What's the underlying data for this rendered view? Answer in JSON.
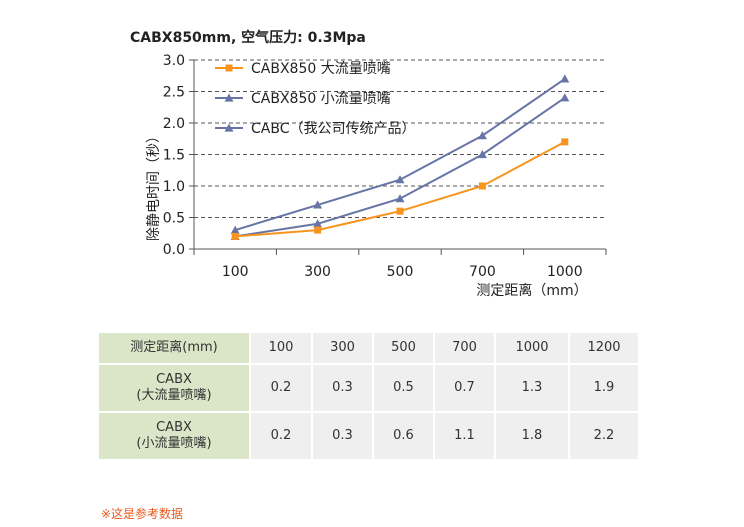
{
  "chart_data": {
    "type": "line",
    "title": "CABX850mm, 空气压力: 0.3Mpa",
    "xlabel": "测定距离（mm）",
    "ylabel": "除静电时间（秒）",
    "categories": [
      "100",
      "300",
      "500",
      "700",
      "1000"
    ],
    "ylim": [
      0,
      3.0
    ],
    "yticks": [
      "0.0",
      "0.5",
      "1.0",
      "1.5",
      "2.0",
      "2.5",
      "3.0"
    ],
    "grid": "dashed horizontal",
    "legend": "top-left",
    "series": [
      {
        "name": "CABX850 大流量喷嘴",
        "values": [
          0.2,
          0.3,
          0.6,
          1.0,
          1.7
        ],
        "color": "#f7941d",
        "marker": "square"
      },
      {
        "name": "CABX850 小流量喷嘴",
        "values": [
          0.2,
          0.4,
          0.8,
          1.5,
          2.4
        ],
        "color": "#6874a6",
        "marker": "triangle"
      },
      {
        "name": "CABC（我公司传统产品）",
        "values": [
          0.3,
          0.7,
          1.1,
          1.8,
          2.7
        ],
        "color": "#6874a6",
        "marker": "triangle"
      }
    ]
  },
  "table": {
    "header_label": "测定距离(mm)",
    "distances": [
      "100",
      "300",
      "500",
      "700",
      "1000",
      "1200"
    ],
    "rows": [
      {
        "label_line1": "CABX",
        "label_line2": "(大流量喷嘴)",
        "values": [
          "0.2",
          "0.3",
          "0.5",
          "0.7",
          "1.3",
          "1.9"
        ]
      },
      {
        "label_line1": "CABX",
        "label_line2": "(小流量喷嘴)",
        "values": [
          "0.2",
          "0.3",
          "0.6",
          "1.1",
          "1.8",
          "2.2"
        ]
      }
    ]
  },
  "note": "※这是参考数据"
}
